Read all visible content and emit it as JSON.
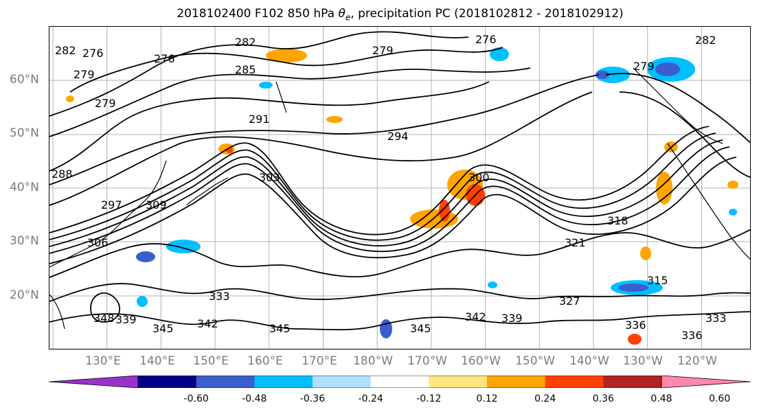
{
  "title": "2018102400 F102 850 hPa θe, precipitation PC (2018102812 - 2018102912)",
  "map": {
    "lat_labels": [
      "60°N",
      "50°N",
      "40°N",
      "30°N",
      "20°N"
    ],
    "lon_labels": [
      "130°E",
      "140°E",
      "150°E",
      "160°E",
      "170°E",
      "180°W",
      "170°W",
      "160°W",
      "150°W",
      "140°W",
      "130°W",
      "120°W"
    ],
    "contour_labels": [
      "282",
      "276",
      "279",
      "276",
      "282",
      "279",
      "276",
      "279",
      "282",
      "285",
      "291",
      "294",
      "300",
      "279",
      "288",
      "297",
      "303",
      "309",
      "306",
      "318",
      "321",
      "327",
      "333",
      "339",
      "342",
      "345",
      "345",
      "345",
      "342",
      "339",
      "336",
      "333",
      "336",
      "315",
      "348"
    ],
    "colors": {
      "contour": "#000000",
      "grid": "#b0b0b0",
      "coast": "#000000"
    }
  },
  "colorbar": {
    "colors": [
      "#9932cc",
      "#00008b",
      "#3a5fcd",
      "#00bfff",
      "#b0e0ff",
      "#ffffff",
      "#ffe680",
      "#ffa500",
      "#ff4000",
      "#b22222",
      "#ff88aa"
    ],
    "ticks": [
      "-0.60",
      "-0.48",
      "-0.36",
      "-0.24",
      "-0.12",
      "0.12",
      "0.24",
      "0.36",
      "0.48",
      "0.60"
    ]
  }
}
